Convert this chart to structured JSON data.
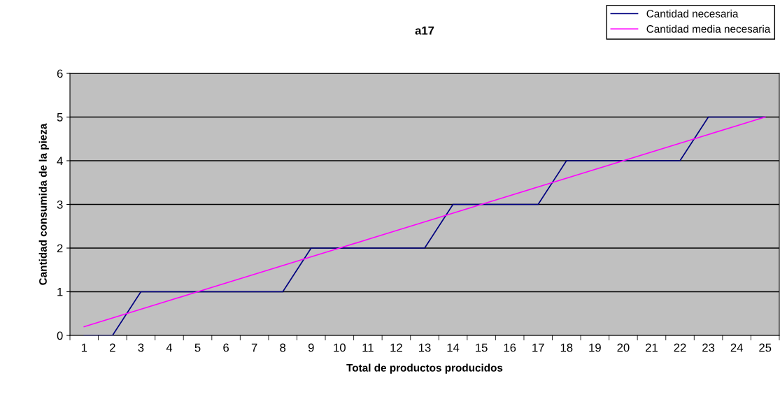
{
  "chart_data": {
    "type": "line",
    "title": "a17",
    "xlabel": "Total de productos producidos",
    "ylabel": "Cantidad consumida de la pieza",
    "categories": [
      "1",
      "2",
      "3",
      "4",
      "5",
      "6",
      "7",
      "8",
      "9",
      "10",
      "11",
      "12",
      "13",
      "14",
      "15",
      "16",
      "17",
      "18",
      "19",
      "20",
      "21",
      "22",
      "23",
      "24",
      "25"
    ],
    "series": [
      {
        "name": "Cantidad necesaria",
        "color": "#000080",
        "values": [
          0,
          0,
          1,
          1,
          1,
          1,
          1,
          1,
          2,
          2,
          2,
          2,
          2,
          3,
          3,
          3,
          3,
          4,
          4,
          4,
          4,
          4,
          5,
          5,
          5
        ]
      },
      {
        "name": "Cantidad media necesaria",
        "color": "#ff00ff",
        "values": [
          0.2,
          0.4,
          0.6,
          0.8,
          1.0,
          1.2,
          1.4,
          1.6,
          1.8,
          2.0,
          2.2,
          2.4,
          2.6,
          2.8,
          3.0,
          3.2,
          3.4,
          3.6,
          3.8,
          4.0,
          4.2,
          4.4,
          4.6,
          4.8,
          5.0
        ]
      }
    ],
    "ylim": [
      0,
      6
    ],
    "yticks": [
      0,
      1,
      2,
      3,
      4,
      5,
      6
    ],
    "grid": "y",
    "legend": "top right",
    "marker": "none",
    "line_style": "solid"
  }
}
